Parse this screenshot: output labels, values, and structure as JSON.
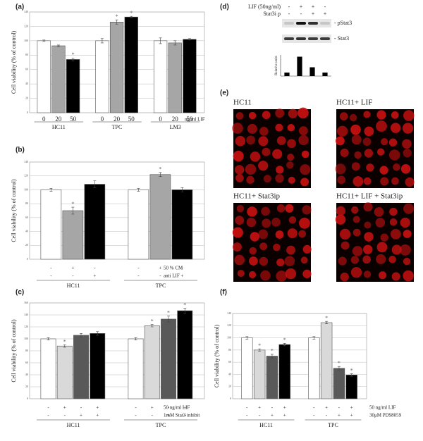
{
  "chart_data": [
    {
      "type": "bar",
      "panel": "(a)",
      "ylabel": "Cell viability (% of control)",
      "categories": [
        "HC11",
        "TPC",
        "LM3"
      ],
      "xlabel": "ng/ml LIF",
      "series": [
        {
          "name": "0",
          "color": "#ffffff",
          "values": [
            100,
            100,
            100
          ],
          "errors": [
            1,
            3,
            4
          ]
        },
        {
          "name": "20",
          "color": "#a6a6a6",
          "values": [
            93,
            126,
            97
          ],
          "errors": [
            1,
            3,
            3
          ]
        },
        {
          "name": "50",
          "color": "#000000",
          "values": [
            74,
            133,
            102
          ],
          "errors": [
            2,
            1,
            1
          ]
        }
      ],
      "ylim": [
        0,
        140
      ],
      "yticks": [
        0,
        20,
        40,
        60,
        80,
        100,
        120,
        140
      ],
      "grid": true,
      "annotations": [
        {
          "text": "*",
          "series": 2,
          "index": 0
        },
        {
          "text": "*",
          "series": 1,
          "index": 1
        },
        {
          "text": "*",
          "series": 2,
          "index": 1
        }
      ]
    },
    {
      "type": "bar",
      "panel": "(b)",
      "ylabel": "Cell viability (% of control)",
      "categories": [
        "HC11",
        "TPC"
      ],
      "series": [
        {
          "color": "#ffffff",
          "values": [
            100,
            100
          ],
          "errors": [
            2,
            2
          ]
        },
        {
          "color": "#a6a6a6",
          "values": [
            70,
            122
          ],
          "errors": [
            5,
            3
          ]
        },
        {
          "color": "#000000",
          "values": [
            108,
            100
          ],
          "errors": [
            5,
            3
          ]
        }
      ],
      "ylim": [
        0,
        140
      ],
      "yticks": [
        0,
        20,
        40,
        60,
        80,
        100,
        120,
        140
      ],
      "grid": true,
      "conditions": [
        {
          "label": "50 % CM",
          "signs": [
            "-",
            "+",
            "-"
          ]
        },
        {
          "label": "anti LIF",
          "signs": [
            "-",
            "-",
            "+"
          ]
        }
      ],
      "annotations": [
        {
          "text": "*",
          "series": 1,
          "index": 0
        },
        {
          "text": "*",
          "series": 1,
          "index": 1
        }
      ]
    },
    {
      "type": "bar",
      "panel": "(c)",
      "ylabel": "Cell viability (% of control)",
      "categories": [
        "HC11",
        "TPC"
      ],
      "series": [
        {
          "color": "#ffffff",
          "values": [
            100,
            100
          ],
          "errors": [
            2,
            2
          ]
        },
        {
          "color": "#d9d9d9",
          "values": [
            88,
            122
          ],
          "errors": [
            2,
            2
          ]
        },
        {
          "color": "#595959",
          "values": [
            106,
            133
          ],
          "errors": [
            3,
            5
          ]
        },
        {
          "color": "#000000",
          "values": [
            109,
            147
          ],
          "errors": [
            3,
            4
          ]
        }
      ],
      "ylim": [
        0,
        160
      ],
      "yticks": [
        0,
        20,
        40,
        60,
        80,
        100,
        120,
        140,
        160
      ],
      "grid": true,
      "conditions": [
        {
          "label": "50 ng/ml LIF",
          "signs": [
            "-",
            "+",
            "-",
            "+"
          ]
        },
        {
          "label": "1mM Stat3 inhibit",
          "signs": [
            "-",
            "-",
            "+",
            "+"
          ]
        }
      ],
      "annotations": [
        {
          "text": "*",
          "series": 1,
          "index": 0
        },
        {
          "text": "*",
          "series": 1,
          "index": 1
        },
        {
          "text": "*",
          "series": 2,
          "index": 1
        },
        {
          "text": "*",
          "series": 3,
          "index": 1
        }
      ]
    },
    {
      "type": "bar",
      "panel": "(f)",
      "ylabel": "Cell viability (% of control)",
      "categories": [
        "HC11",
        "TPC"
      ],
      "series": [
        {
          "color": "#ffffff",
          "values": [
            100,
            100
          ],
          "errors": [
            2,
            2
          ]
        },
        {
          "color": "#d9d9d9",
          "values": [
            80,
            125
          ],
          "errors": [
            2,
            2
          ]
        },
        {
          "color": "#595959",
          "values": [
            70,
            50
          ],
          "errors": [
            3,
            3
          ]
        },
        {
          "color": "#000000",
          "values": [
            89,
            39
          ],
          "errors": [
            2,
            2
          ]
        }
      ],
      "ylim": [
        0,
        140
      ],
      "yticks": [
        0,
        20,
        40,
        60,
        80,
        100,
        120,
        140
      ],
      "grid": true,
      "conditions": [
        {
          "label": "50 ng/ml LIF",
          "signs": [
            "-",
            "+",
            "-",
            "+"
          ]
        },
        {
          "label": "30μM PD98059",
          "signs": [
            "-",
            "-",
            "+",
            "+"
          ]
        }
      ],
      "annotations": [
        {
          "text": "*",
          "series": 1,
          "index": 0
        },
        {
          "text": "*",
          "series": 2,
          "index": 0
        },
        {
          "text": "*",
          "series": 3,
          "index": 0
        },
        {
          "text": "*",
          "series": 1,
          "index": 1
        },
        {
          "text": "*",
          "series": 2,
          "index": 1
        },
        {
          "text": "*",
          "series": 3,
          "index": 1
        }
      ]
    },
    {
      "type": "minibar",
      "ylabel": "Relative units",
      "values": [
        1,
        5.5,
        2.5,
        1
      ],
      "color": "#000000",
      "ylim": [
        0,
        6
      ]
    }
  ],
  "blot": {
    "panel": "(d)",
    "treatments": [
      {
        "label": "LIF (50ng/ml)",
        "signs": [
          "-",
          "+",
          "+",
          "-"
        ]
      },
      {
        "label": "Stat3i p",
        "signs": [
          "-",
          "-",
          "+",
          "+"
        ]
      }
    ],
    "bands": [
      "- pStat3",
      "- Stat3"
    ]
  },
  "micrographs": {
    "panel": "(e)",
    "labels": [
      "HC11",
      "HC11+ LIF",
      "HC11+ Stat3ip",
      "HC11+ LIF + Stat3ip"
    ]
  }
}
